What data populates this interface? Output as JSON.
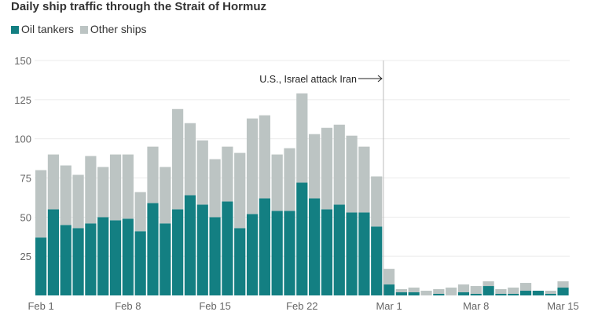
{
  "chart_data": {
    "type": "bar",
    "stacked": true,
    "title": "Daily ship traffic through the Strait of Hormuz",
    "legend_position": "top-left",
    "grid": true,
    "ylim": [
      0,
      150
    ],
    "yticks": [
      25,
      50,
      75,
      100,
      125,
      150
    ],
    "ytick_labels": [
      "25",
      "50",
      "75",
      "100",
      "125",
      "150"
    ],
    "xtick_labels": [
      {
        "day": 0,
        "label": "Feb 1"
      },
      {
        "day": 7,
        "label": "Feb 8"
      },
      {
        "day": 14,
        "label": "Feb 15"
      },
      {
        "day": 21,
        "label": "Feb 22"
      },
      {
        "day": 28,
        "label": "Mar 1"
      },
      {
        "day": 35,
        "label": "Mar 8"
      },
      {
        "day": 42,
        "label": "Mar 15"
      }
    ],
    "categories": [
      "Feb 1",
      "Feb 2",
      "Feb 3",
      "Feb 4",
      "Feb 5",
      "Feb 6",
      "Feb 7",
      "Feb 8",
      "Feb 9",
      "Feb 10",
      "Feb 11",
      "Feb 12",
      "Feb 13",
      "Feb 14",
      "Feb 15",
      "Feb 16",
      "Feb 17",
      "Feb 18",
      "Feb 19",
      "Feb 20",
      "Feb 21",
      "Feb 22",
      "Feb 23",
      "Feb 24",
      "Feb 25",
      "Feb 26",
      "Feb 27",
      "Feb 28",
      "Mar 1",
      "Mar 2",
      "Mar 3",
      "Mar 4",
      "Mar 5",
      "Mar 6",
      "Mar 7",
      "Mar 8",
      "Mar 9",
      "Mar 10",
      "Mar 11",
      "Mar 12",
      "Mar 13",
      "Mar 14",
      "Mar 15"
    ],
    "series": [
      {
        "name": "Oil tankers",
        "color": "#137f82",
        "values": [
          37,
          55,
          45,
          43,
          46,
          50,
          48,
          49,
          41,
          59,
          46,
          55,
          64,
          58,
          50,
          60,
          43,
          52,
          62,
          54,
          54,
          72,
          62,
          55,
          58,
          53,
          53,
          44,
          7,
          2,
          2,
          0,
          1,
          0,
          2,
          1,
          6,
          1,
          1,
          3,
          3,
          1,
          5
        ]
      },
      {
        "name": "Other ships",
        "color": "#bcc4c3",
        "values": [
          43,
          35,
          38,
          34,
          43,
          32,
          42,
          41,
          25,
          36,
          36,
          64,
          46,
          41,
          37,
          35,
          48,
          61,
          53,
          36,
          40,
          57,
          41,
          52,
          51,
          49,
          42,
          32,
          10,
          2,
          3,
          3,
          3,
          5,
          5,
          5,
          3,
          3,
          4,
          5,
          0,
          2,
          4
        ]
      }
    ],
    "annotation": {
      "text": "U.S., Israel attack Iran",
      "day": 27.5
    }
  }
}
